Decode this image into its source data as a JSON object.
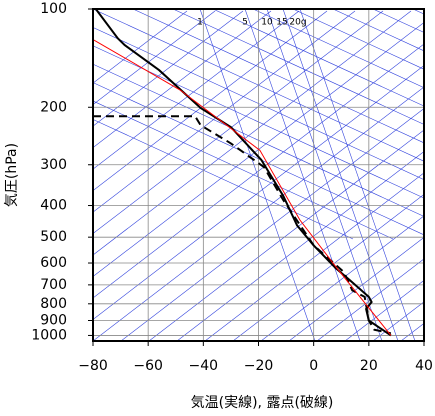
{
  "chart_data": {
    "type": "line",
    "x_label": "気温(実線), 露点(破線)",
    "y_label": "気圧(hPa)",
    "mixing_ratio_labels": [
      "1",
      "5",
      "10",
      "15",
      "20g"
    ],
    "xlim": [
      -80,
      40
    ],
    "xticks": [
      {
        "value": -80,
        "label": "−80"
      },
      {
        "value": -60,
        "label": "−60"
      },
      {
        "value": -40,
        "label": "−40"
      },
      {
        "value": -20,
        "label": "−20"
      },
      0,
      20,
      40
    ],
    "ylim": [
      1040,
      100
    ],
    "log_y": true,
    "yticks": [
      100,
      200,
      300,
      400,
      500,
      600,
      700,
      800,
      900,
      1000
    ],
    "grid": true,
    "series": [
      {
        "color": "#000000",
        "dashed": false,
        "width": 2,
        "pressure": [
          100,
          123,
          129,
          154,
          201,
          230,
          290,
          374,
          460,
          530,
          622,
          676,
          762,
          790,
          830,
          900,
          1000
        ],
        "values": [
          -79,
          -71,
          -68.5,
          -56,
          -41,
          -30,
          -19,
          -11,
          -6,
          0,
          8,
          13,
          20,
          21,
          19,
          20,
          28
        ]
      },
      {
        "color": "#000000",
        "dashed": true,
        "width": 2,
        "pressure": [
          213,
          213,
          227,
          258,
          305,
          385,
          530,
          640,
          728,
          762,
          900,
          960,
          985
        ],
        "values": [
          -80,
          -43,
          -41,
          -30,
          -18,
          -11,
          0,
          11,
          14,
          18.5,
          20,
          22,
          28
        ]
      },
      {
        "color": "#ff0000",
        "dashed": false,
        "width": 1,
        "pressure": [
          124,
          177,
          271,
          443,
          631,
          1000
        ],
        "values": [
          -80,
          -48.5,
          -19.5,
          -5,
          9,
          28
        ]
      }
    ]
  }
}
